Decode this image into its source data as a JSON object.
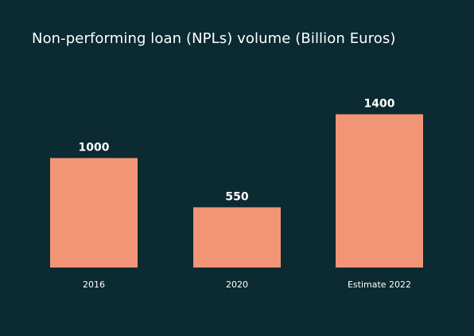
{
  "colors": {
    "background": "#0b2a31",
    "bar": "#f29577",
    "text": "#ffffff"
  },
  "chart_data": {
    "type": "bar",
    "title": "Non-performing loan (NPLs) volume (Billion Euros)",
    "categories": [
      "2016",
      "2020",
      "Estimate 2022"
    ],
    "values": [
      1000,
      550,
      1400
    ],
    "xlabel": "",
    "ylabel": "",
    "ylim": [
      0,
      1500
    ],
    "grid": false,
    "legend": "none"
  }
}
